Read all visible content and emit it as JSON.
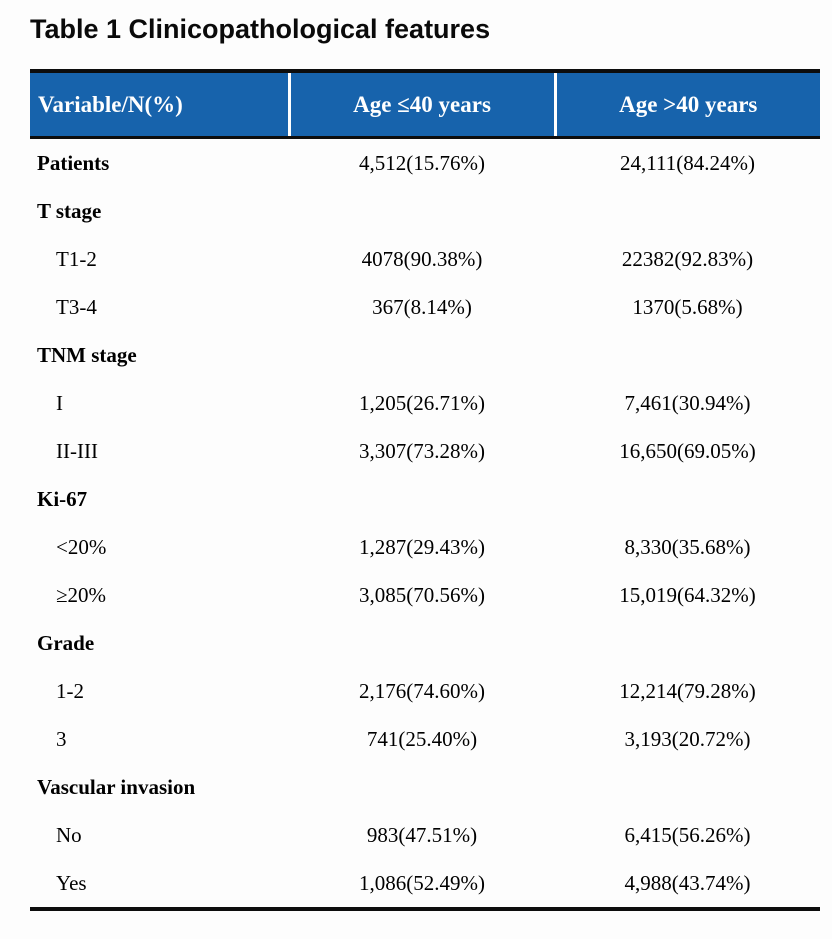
{
  "title": "Table 1 Clinicopathological features",
  "colors": {
    "header_bg": "#1763AC",
    "header_text": "#FFFFFF",
    "border": "#0D0D0D",
    "body_text": "#000000"
  },
  "table": {
    "columns": [
      "Variable/N(%)",
      "Age ≤40 years",
      "Age >40 years"
    ],
    "rows": [
      {
        "label": "Patients",
        "bold": true,
        "age_le40": "4,512(15.76%)",
        "age_gt40": "24,111(84.24%)"
      },
      {
        "label": "T stage",
        "bold": true,
        "age_le40": "",
        "age_gt40": ""
      },
      {
        "label": "T1-2",
        "bold": false,
        "age_le40": "4078(90.38%)",
        "age_gt40": "22382(92.83%)"
      },
      {
        "label": "T3-4",
        "bold": false,
        "age_le40": "367(8.14%)",
        "age_gt40": "1370(5.68%)"
      },
      {
        "label": "TNM stage",
        "bold": true,
        "age_le40": "",
        "age_gt40": ""
      },
      {
        "label": "I",
        "bold": false,
        "age_le40": "1,205(26.71%)",
        "age_gt40": "7,461(30.94%)"
      },
      {
        "label": "II-III",
        "bold": false,
        "age_le40": "3,307(73.28%)",
        "age_gt40": "16,650(69.05%)"
      },
      {
        "label": "Ki-67",
        "bold": true,
        "age_le40": "",
        "age_gt40": ""
      },
      {
        "label": "<20%",
        "bold": false,
        "age_le40": "1,287(29.43%)",
        "age_gt40": "8,330(35.68%)"
      },
      {
        "label": "≥20%",
        "bold": false,
        "age_le40": "3,085(70.56%)",
        "age_gt40": "15,019(64.32%)"
      },
      {
        "label": "Grade",
        "bold": true,
        "age_le40": "",
        "age_gt40": ""
      },
      {
        "label": "1-2",
        "bold": false,
        "age_le40": "2,176(74.60%)",
        "age_gt40": "12,214(79.28%)"
      },
      {
        "label": "3",
        "bold": false,
        "age_le40": "741(25.40%)",
        "age_gt40": "3,193(20.72%)"
      },
      {
        "label": "Vascular invasion",
        "bold": true,
        "age_le40": "",
        "age_gt40": ""
      },
      {
        "label": "No",
        "bold": false,
        "age_le40": "983(47.51%)",
        "age_gt40": "6,415(56.26%)"
      },
      {
        "label": "Yes",
        "bold": false,
        "age_le40": "1,086(52.49%)",
        "age_gt40": "4,988(43.74%)"
      }
    ]
  }
}
